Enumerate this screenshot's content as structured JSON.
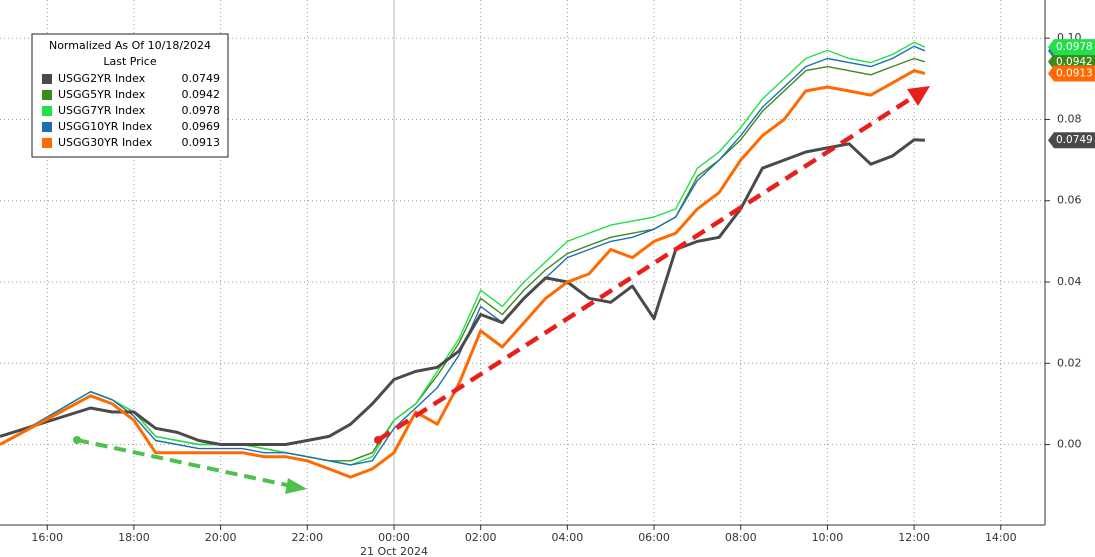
{
  "chart_data": {
    "type": "line",
    "legend_title": "Normalized As Of 10/18/2024",
    "legend_subtitle": "Last Price",
    "legend_position": "upper left",
    "date_label": "21 Oct 2024",
    "grid": true,
    "xlim": [
      -9.09,
      15.02
    ],
    "xticks": [
      {
        "value": -8,
        "label": "16:00"
      },
      {
        "value": -6,
        "label": "18:00"
      },
      {
        "value": -4,
        "label": "20:00"
      },
      {
        "value": -2,
        "label": "22:00"
      },
      {
        "value": 0,
        "label": "00:00"
      },
      {
        "value": 2,
        "label": "02:00"
      },
      {
        "value": 4,
        "label": "04:00"
      },
      {
        "value": 6,
        "label": "06:00"
      },
      {
        "value": 8,
        "label": "08:00"
      },
      {
        "value": 10,
        "label": "10:00"
      },
      {
        "value": 12,
        "label": "12:00"
      },
      {
        "value": 14,
        "label": "14:00"
      }
    ],
    "ylim": [
      -0.0198,
      0.1094
    ],
    "yticks": [
      {
        "value": 0,
        "label": "0.00"
      },
      {
        "value": 0.02,
        "label": "0.02"
      },
      {
        "value": 0.04,
        "label": "0.04"
      },
      {
        "value": 0.06,
        "label": "0.06"
      },
      {
        "value": 0.08,
        "label": "0.08"
      },
      {
        "value": 0.1,
        "label": "0.10"
      }
    ],
    "x": [
      -9.09,
      -7,
      -6.5,
      -6,
      -5.5,
      -5,
      -4.5,
      -4,
      -3.5,
      -3,
      -2.5,
      -2,
      -1.5,
      -1,
      -0.5,
      0,
      0.5,
      1,
      1.5,
      2,
      2.5,
      3,
      3.5,
      4,
      4.5,
      5,
      5.5,
      6,
      6.5,
      7,
      7.5,
      8,
      8.5,
      9,
      9.5,
      10,
      10.5,
      11,
      11.5,
      12,
      12.25
    ],
    "series": [
      {
        "name": "USGG2YR Index",
        "color": "#4a4a4a",
        "values": [
          0.002,
          0.009,
          0.008,
          0.008,
          0.004,
          0.003,
          0.001,
          0.0,
          0.0,
          0.0,
          0.0,
          0.001,
          0.002,
          0.005,
          0.01,
          0.016,
          0.018,
          0.019,
          0.023,
          0.032,
          0.03,
          0.036,
          0.041,
          0.04,
          0.036,
          0.035,
          0.039,
          0.031,
          0.048,
          0.05,
          0.051,
          0.058,
          0.068,
          0.07,
          0.072,
          0.073,
          0.074,
          0.069,
          0.071,
          0.075,
          0.0749
        ]
      },
      {
        "name": "USGG5YR Index",
        "color": "#3a8a1c",
        "values": [
          0.0,
          0.013,
          0.011,
          0.008,
          0.002,
          0.001,
          0.0,
          0.0,
          0.0,
          -0.001,
          -0.002,
          -0.003,
          -0.004,
          -0.004,
          -0.002,
          0.006,
          0.01,
          0.017,
          0.025,
          0.036,
          0.032,
          0.038,
          0.043,
          0.047,
          0.049,
          0.051,
          0.052,
          0.053,
          0.056,
          0.066,
          0.07,
          0.075,
          0.082,
          0.087,
          0.092,
          0.093,
          0.092,
          0.091,
          0.093,
          0.095,
          0.0942
        ]
      },
      {
        "name": "USGG7YR Index",
        "color": "#22e04a",
        "values": [
          0.0,
          0.013,
          0.011,
          0.008,
          0.002,
          0.001,
          0.0,
          0.0,
          0.0,
          -0.001,
          -0.002,
          -0.003,
          -0.004,
          -0.005,
          -0.003,
          0.006,
          0.01,
          0.018,
          0.026,
          0.038,
          0.034,
          0.04,
          0.045,
          0.05,
          0.052,
          0.054,
          0.055,
          0.056,
          0.058,
          0.068,
          0.072,
          0.078,
          0.085,
          0.09,
          0.095,
          0.097,
          0.095,
          0.094,
          0.096,
          0.099,
          0.0978
        ]
      },
      {
        "name": "USGG10YR Index",
        "color": "#1f6fb0",
        "values": [
          0.0,
          0.013,
          0.011,
          0.007,
          0.001,
          0.0,
          -0.001,
          -0.001,
          -0.001,
          -0.002,
          -0.002,
          -0.003,
          -0.004,
          -0.005,
          -0.004,
          0.004,
          0.009,
          0.014,
          0.022,
          0.034,
          0.03,
          0.036,
          0.041,
          0.046,
          0.048,
          0.05,
          0.051,
          0.053,
          0.056,
          0.065,
          0.07,
          0.076,
          0.083,
          0.088,
          0.093,
          0.095,
          0.094,
          0.093,
          0.095,
          0.098,
          0.0969
        ]
      },
      {
        "name": "USGG30YR Index",
        "color": "#ff6a00",
        "values": [
          0.0,
          0.012,
          0.01,
          0.006,
          -0.002,
          -0.002,
          -0.002,
          -0.002,
          -0.002,
          -0.003,
          -0.003,
          -0.004,
          -0.006,
          -0.008,
          -0.006,
          -0.002,
          0.008,
          0.005,
          0.015,
          0.028,
          0.024,
          0.03,
          0.036,
          0.04,
          0.042,
          0.048,
          0.046,
          0.05,
          0.052,
          0.058,
          0.062,
          0.07,
          0.076,
          0.08,
          0.087,
          0.088,
          0.087,
          0.086,
          0.089,
          0.092,
          0.0913
        ]
      }
    ]
  }
}
